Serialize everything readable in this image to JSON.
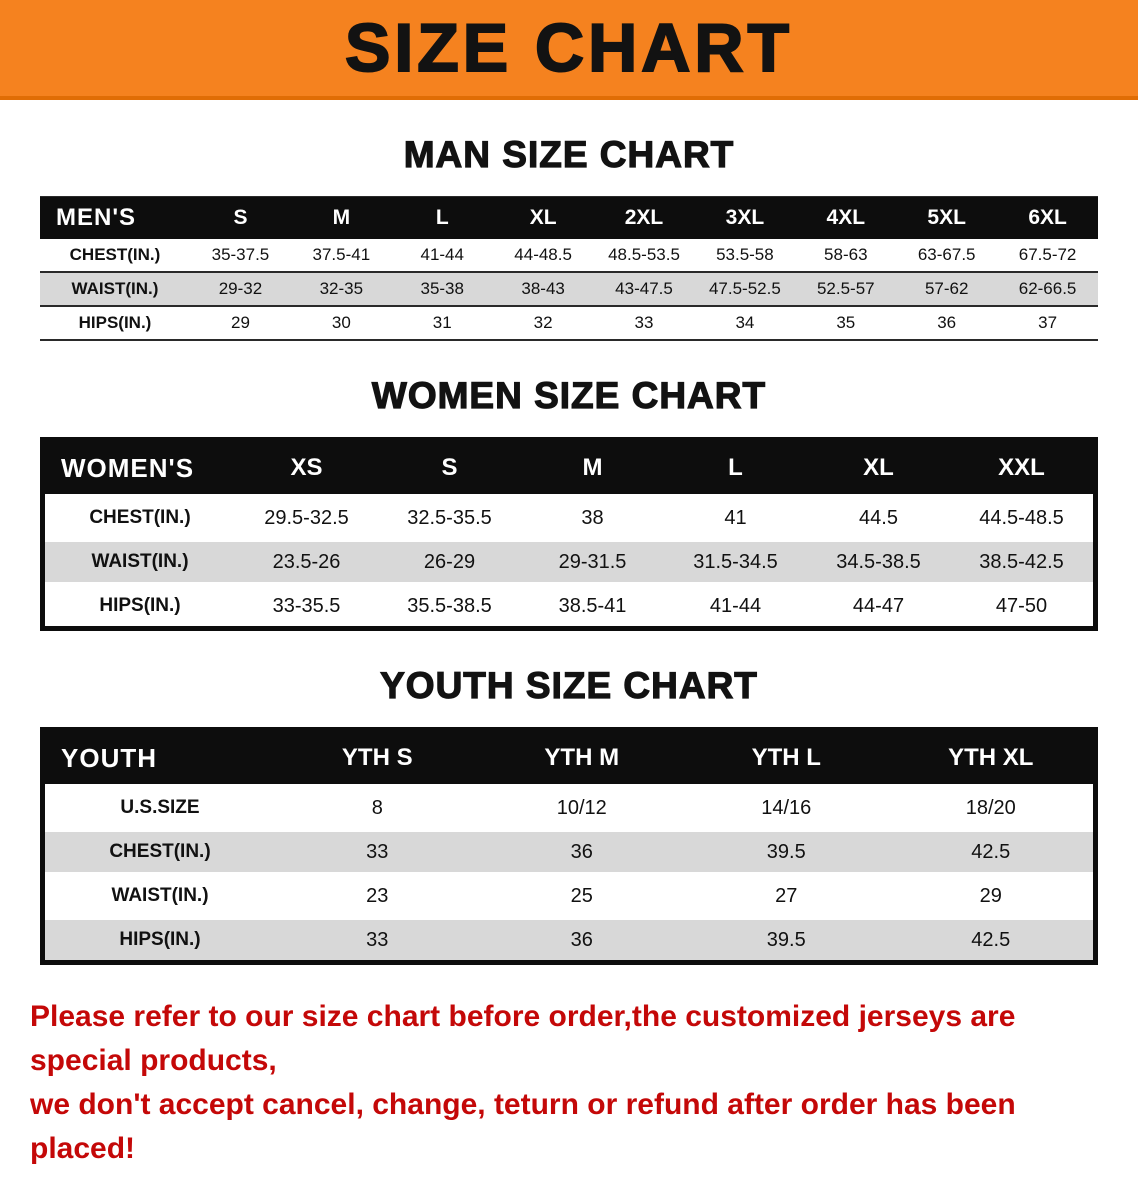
{
  "banner": {
    "title": "SIZE CHART"
  },
  "colors": {
    "banner-bg": "#f5821f",
    "header-bg": "#0d0d0d",
    "stripe": "#d8d8d8",
    "footer-red": "#c40808"
  },
  "sections": [
    {
      "heading": "MAN SIZE CHART",
      "table": {
        "header": [
          "MEN'S",
          "S",
          "M",
          "L",
          "XL",
          "2XL",
          "3XL",
          "4XL",
          "5XL",
          "6XL"
        ],
        "rows": [
          {
            "label": "CHEST(IN.)",
            "values": [
              "35-37.5",
              "37.5-41",
              "41-44",
              "44-48.5",
              "48.5-53.5",
              "53.5-58",
              "58-63",
              "63-67.5",
              "67.5-72"
            ]
          },
          {
            "label": "WAIST(IN.)",
            "values": [
              "29-32",
              "32-35",
              "35-38",
              "38-43",
              "43-47.5",
              "47.5-52.5",
              "52.5-57",
              "57-62",
              "62-66.5"
            ]
          },
          {
            "label": "HIPS(IN.)",
            "values": [
              "29",
              "30",
              "31",
              "32",
              "33",
              "34",
              "35",
              "36",
              "37"
            ]
          }
        ]
      }
    },
    {
      "heading": "WOMEN SIZE CHART",
      "table": {
        "header": [
          "WOMEN'S",
          "XS",
          "S",
          "M",
          "L",
          "XL",
          "XXL"
        ],
        "rows": [
          {
            "label": "CHEST(IN.)",
            "values": [
              "29.5-32.5",
              "32.5-35.5",
              "38",
              "41",
              "44.5",
              "44.5-48.5"
            ]
          },
          {
            "label": "WAIST(IN.)",
            "values": [
              "23.5-26",
              "26-29",
              "29-31.5",
              "31.5-34.5",
              "34.5-38.5",
              "38.5-42.5"
            ]
          },
          {
            "label": "HIPS(IN.)",
            "values": [
              "33-35.5",
              "35.5-38.5",
              "38.5-41",
              "41-44",
              "44-47",
              "47-50"
            ]
          }
        ]
      }
    },
    {
      "heading": "YOUTH SIZE CHART",
      "table": {
        "header": [
          "YOUTH",
          "YTH S",
          "YTH M",
          "YTH L",
          "YTH XL"
        ],
        "rows": [
          {
            "label": "U.S.SIZE",
            "values": [
              "8",
              "10/12",
              "14/16",
              "18/20"
            ]
          },
          {
            "label": "CHEST(IN.)",
            "values": [
              "33",
              "36",
              "39.5",
              "42.5"
            ]
          },
          {
            "label": "WAIST(IN.)",
            "values": [
              "23",
              "25",
              "27",
              "29"
            ]
          },
          {
            "label": "HIPS(IN.)",
            "values": [
              "33",
              "36",
              "39.5",
              "42.5"
            ]
          }
        ]
      }
    }
  ],
  "footer": {
    "line1": "Please refer to our size chart before order,the customized jerseys are special products,",
    "line2": "we don't accept cancel, change, teturn or refund after order has been placed!"
  }
}
